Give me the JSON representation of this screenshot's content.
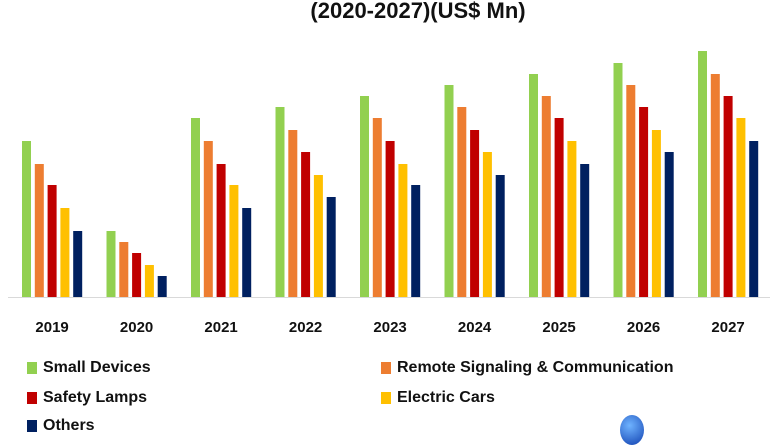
{
  "chart_data": {
    "type": "bar",
    "title": "(2020-2027)(US$ Mn)",
    "xlabel": "",
    "ylabel": "",
    "grid": false,
    "legend_placement": "bottom",
    "categories": [
      "2019",
      "2020",
      "2021",
      "2022",
      "2023",
      "2024",
      "2025",
      "2026",
      "2027"
    ],
    "ylim": [
      0,
      250
    ],
    "series": [
      {
        "name": "Small Devices",
        "color": "#92d050",
        "values": [
          156,
          66,
          179,
          190,
          201,
          212,
          223,
          234,
          246
        ]
      },
      {
        "name": "Remote Signaling & Communication",
        "color": "#ed7d31",
        "values": [
          133,
          55,
          156,
          167,
          179,
          190,
          201,
          212,
          223
        ]
      },
      {
        "name": "Safety Lamps",
        "color": "#c00000",
        "values": [
          112,
          44,
          133,
          145,
          156,
          167,
          179,
          190,
          201
        ]
      },
      {
        "name": "Electric Cars",
        "color": "#ffc000",
        "values": [
          89,
          32,
          112,
          122,
          133,
          145,
          156,
          167,
          179
        ]
      },
      {
        "name": "Others",
        "color": "#002060",
        "values": [
          66,
          21,
          89,
          100,
          112,
          122,
          133,
          145,
          156
        ]
      }
    ]
  },
  "logo": {
    "icon": "globe-logo-icon"
  }
}
